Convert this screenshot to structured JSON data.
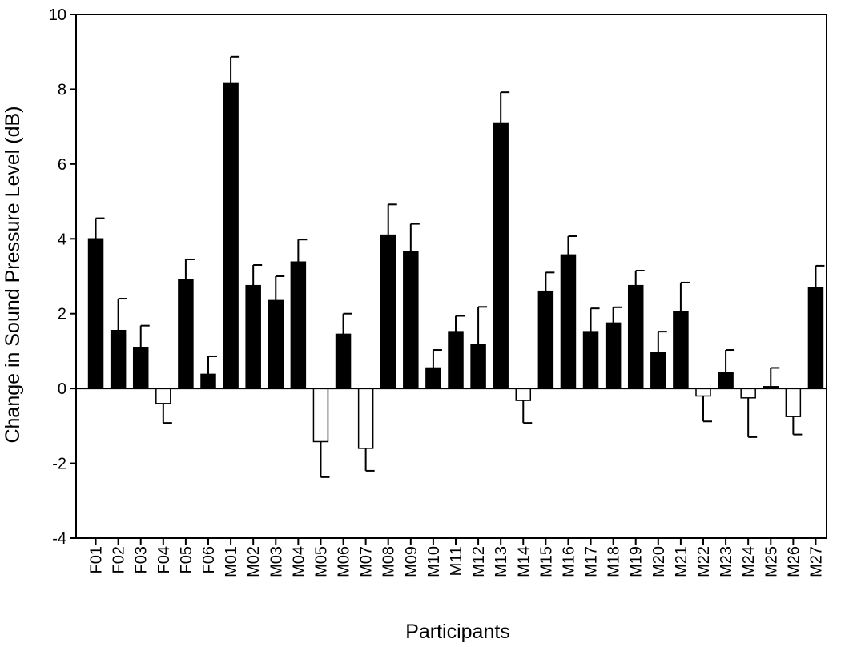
{
  "chart_data": {
    "type": "bar",
    "xlabel": "Participants",
    "ylabel": "Change in Sound Pressure Level (dB)",
    "ylim": [
      -4,
      10
    ],
    "yticks": [
      -4,
      -2,
      0,
      2,
      4,
      6,
      8,
      10
    ],
    "grid": false,
    "colors": {
      "positive": "#000000",
      "negative": "#ffffff",
      "axis": "#000000"
    },
    "categories": [
      "F01",
      "F02",
      "F03",
      "F04",
      "F05",
      "F06",
      "M01",
      "M02",
      "M03",
      "M04",
      "M05",
      "M06",
      "M07",
      "M08",
      "M09",
      "M10",
      "M11",
      "M12",
      "M13",
      "M14",
      "M15",
      "M16",
      "M17",
      "M18",
      "M19",
      "M20",
      "M21",
      "M22",
      "M23",
      "M24",
      "M25",
      "M26",
      "M27"
    ],
    "values": [
      4.0,
      1.55,
      1.1,
      -0.4,
      2.9,
      0.38,
      8.15,
      2.75,
      2.35,
      3.38,
      -1.42,
      1.45,
      -1.6,
      4.1,
      3.65,
      0.55,
      1.52,
      1.18,
      7.1,
      -0.32,
      2.6,
      3.57,
      1.52,
      1.75,
      2.75,
      0.97,
      2.05,
      -0.2,
      0.43,
      -0.25,
      0.05,
      -0.75,
      2.7
    ],
    "error": [
      0.55,
      0.85,
      0.58,
      0.52,
      0.55,
      0.48,
      0.72,
      0.55,
      0.65,
      0.6,
      0.95,
      0.55,
      0.6,
      0.82,
      0.75,
      0.48,
      0.42,
      1.0,
      0.82,
      0.6,
      0.5,
      0.5,
      0.62,
      0.42,
      0.4,
      0.55,
      0.78,
      0.68,
      0.6,
      1.05,
      0.5,
      0.48,
      0.58
    ]
  }
}
